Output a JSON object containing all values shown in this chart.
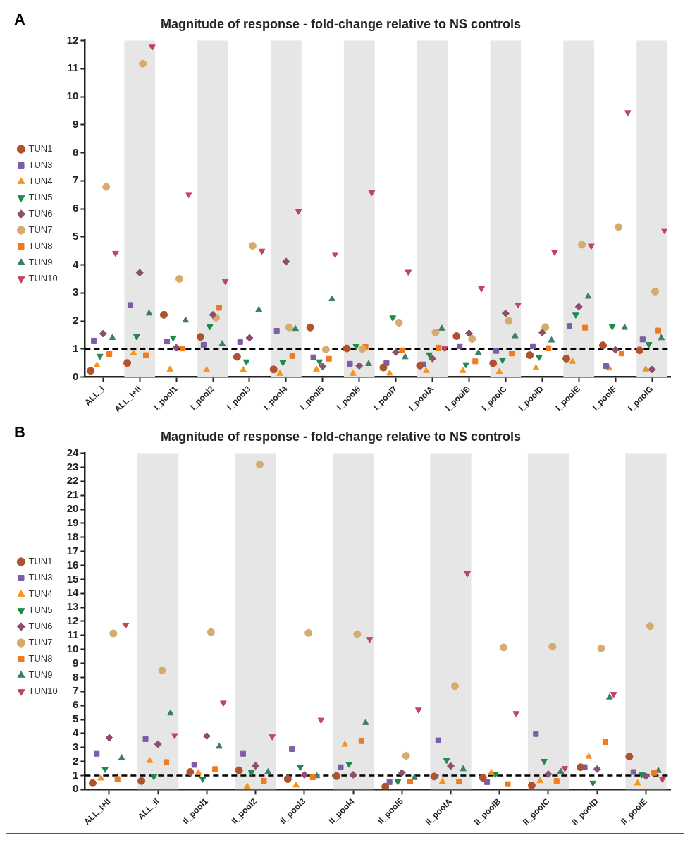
{
  "chart_data": [
    {
      "type": "scatter",
      "title": "Magnitude of response - fold-change relative to NS controls",
      "annotations": [
        "A"
      ],
      "legend": "left",
      "grid": false,
      "categories": [
        "ALL_I",
        "ALL_I+II",
        "I_pool1",
        "I_pool2",
        "I_pool3",
        "I_pool4",
        "I_pool5",
        "I_pool6",
        "I_pool7",
        "I_poolA",
        "I_poolB",
        "I_poolC",
        "I_poolD",
        "I_poolE",
        "I_poolF",
        "I_poolG"
      ],
      "ylim": [
        0,
        12
      ],
      "yticks": [
        0,
        1,
        2,
        3,
        4,
        5,
        6,
        7,
        8,
        9,
        10,
        11,
        12
      ],
      "ref_lines": [
        {
          "axis": "y",
          "value": 1,
          "line_style": "dashed",
          "color": "#000000"
        }
      ],
      "bands": [
        {
          "axis": "x",
          "from": "ALL_I+II",
          "to": "ALL_I+II",
          "color": "#e6e6e6"
        },
        {
          "axis": "x",
          "from": "I_pool2",
          "to": "I_pool2",
          "color": "#e6e6e6"
        },
        {
          "axis": "x",
          "from": "I_pool4",
          "to": "I_pool4",
          "color": "#e6e6e6"
        },
        {
          "axis": "x",
          "from": "I_pool6",
          "to": "I_pool6",
          "color": "#e6e6e6"
        },
        {
          "axis": "x",
          "from": "I_poolA",
          "to": "I_poolA",
          "color": "#e6e6e6"
        },
        {
          "axis": "x",
          "from": "I_poolC",
          "to": "I_poolC",
          "color": "#e6e6e6"
        },
        {
          "axis": "x",
          "from": "I_poolE",
          "to": "I_poolE",
          "color": "#e6e6e6"
        },
        {
          "axis": "x",
          "from": "I_poolG",
          "to": "I_poolG",
          "color": "#e6e6e6"
        }
      ],
      "series": [
        {
          "name": "TUN1",
          "color": "#b0522e",
          "marker": "circle",
          "values": [
            0.22,
            0.5,
            2.22,
            1.43,
            0.72,
            0.27,
            1.77,
            1.02,
            0.34,
            0.41,
            1.46,
            0.49,
            0.78,
            0.66,
            1.13,
            0.95
          ]
        },
        {
          "name": "TUN3",
          "color": "#7d5ca8",
          "marker": "square",
          "values": [
            1.3,
            2.57,
            1.27,
            1.15,
            1.25,
            1.65,
            0.7,
            0.47,
            0.5,
            0.45,
            1.1,
            0.93,
            1.1,
            1.82,
            0.39,
            1.34
          ]
        },
        {
          "name": "TUN4",
          "color": "#f5941e",
          "marker": "triangle",
          "values": [
            0.42,
            0.85,
            0.27,
            0.25,
            0.25,
            0.12,
            0.27,
            0.12,
            0.13,
            0.22,
            0.22,
            0.19,
            0.32,
            0.55,
            0.31,
            0.27
          ]
        },
        {
          "name": "TUN5",
          "color": "#1f8a47",
          "marker": "triangle-down",
          "values": [
            0.75,
            1.45,
            1.4,
            1.8,
            0.55,
            0.52,
            0.55,
            1.1,
            2.12,
            0.8,
            0.45,
            0.61,
            0.71,
            2.22,
            1.8,
            1.17
          ]
        },
        {
          "name": "TUN6",
          "color": "#8c4f6e",
          "marker": "diamond",
          "values": [
            1.55,
            3.72,
            1.05,
            2.22,
            1.4,
            4.12,
            0.38,
            0.4,
            0.89,
            0.66,
            1.56,
            2.27,
            1.59,
            2.51,
            0.97,
            0.27
          ]
        },
        {
          "name": "TUN7",
          "color": "#d6ab6c",
          "marker": "circle",
          "values": [
            6.78,
            11.18,
            3.5,
            2.12,
            4.68,
            1.77,
            0.98,
            1.0,
            1.94,
            1.59,
            1.36,
            2.0,
            1.78,
            4.72,
            5.35,
            3.05
          ]
        },
        {
          "name": "TUN8",
          "color": "#f27a1a",
          "marker": "square",
          "values": [
            0.82,
            0.78,
            1.02,
            2.47,
            null,
            0.75,
            0.65,
            1.08,
            0.95,
            1.05,
            0.56,
            0.84,
            1.03,
            1.76,
            0.84,
            1.66
          ]
        },
        {
          "name": "TUN9",
          "color": "#3d7e6b",
          "marker": "triangle",
          "values": [
            1.4,
            2.27,
            2.02,
            1.18,
            2.4,
            1.72,
            2.78,
            0.47,
            0.71,
            1.73,
            0.86,
            1.46,
            1.31,
            2.87,
            1.76,
            1.39
          ]
        },
        {
          "name": "TUN10",
          "color": "#c2435c",
          "marker": "triangle-down",
          "values": [
            4.42,
            11.78,
            6.52,
            3.42,
            4.5,
            5.92,
            4.38,
            6.58,
            3.75,
            1.03,
            3.16,
            2.58,
            4.46,
            4.68,
            9.44,
            5.23
          ]
        }
      ]
    },
    {
      "type": "scatter",
      "title": "Magnitude of response - fold-change relative to NS controls",
      "annotations": [
        "B"
      ],
      "legend": "left",
      "grid": false,
      "categories": [
        "ALL_I+II",
        "ALL_II",
        "II_pool1",
        "II_pool2",
        "II_pool3",
        "II_pool4",
        "II_pool5",
        "II_poolA",
        "II_poolB",
        "II_poolC",
        "II_poolD",
        "II_poolE"
      ],
      "ylim": [
        0,
        24
      ],
      "yticks": [
        0,
        1,
        2,
        3,
        4,
        5,
        6,
        7,
        8,
        9,
        10,
        11,
        12,
        13,
        14,
        15,
        16,
        17,
        18,
        19,
        20,
        21,
        22,
        23,
        24
      ],
      "ref_lines": [
        {
          "axis": "y",
          "value": 1,
          "line_style": "dashed",
          "color": "#000000"
        }
      ],
      "bands": [
        {
          "axis": "x",
          "from": "ALL_II",
          "to": "ALL_II",
          "color": "#e6e6e6"
        },
        {
          "axis": "x",
          "from": "II_pool2",
          "to": "II_pool2",
          "color": "#e6e6e6"
        },
        {
          "axis": "x",
          "from": "II_pool4",
          "to": "II_pool4",
          "color": "#e6e6e6"
        },
        {
          "axis": "x",
          "from": "II_poolA",
          "to": "II_poolA",
          "color": "#e6e6e6"
        },
        {
          "axis": "x",
          "from": "II_poolC",
          "to": "II_poolC",
          "color": "#e6e6e6"
        },
        {
          "axis": "x",
          "from": "II_poolE",
          "to": "II_poolE",
          "color": "#e6e6e6"
        }
      ],
      "series": [
        {
          "name": "TUN1",
          "color": "#b0522e",
          "marker": "circle",
          "values": [
            0.46,
            0.61,
            1.25,
            1.37,
            0.75,
            0.96,
            0.21,
            0.93,
            0.84,
            0.29,
            1.59,
            2.35
          ]
        },
        {
          "name": "TUN3",
          "color": "#7d5ca8",
          "marker": "square",
          "values": [
            2.55,
            3.6,
            1.76,
            2.55,
            2.89,
            1.59,
            0.53,
            3.51,
            0.53,
            3.96,
            1.6,
            1.25
          ]
        },
        {
          "name": "TUN4",
          "color": "#f5941e",
          "marker": "triangle",
          "values": [
            0.8,
            2.05,
            1.19,
            0.21,
            0.3,
            3.21,
            null,
            0.57,
            1.19,
            0.61,
            2.35,
            0.45
          ]
        },
        {
          "name": "TUN5",
          "color": "#1f8a47",
          "marker": "triangle-down",
          "values": [
            1.46,
            0.93,
            0.75,
            1.23,
            1.6,
            1.82,
            0.57,
            2.09,
            1.1,
            2.03,
            0.48,
            1.07
          ]
        },
        {
          "name": "TUN6",
          "color": "#8c4f6e",
          "marker": "diamond",
          "values": [
            3.69,
            3.24,
            3.81,
            1.69,
            1.05,
            1.05,
            1.19,
            1.68,
            null,
            1.1,
            1.46,
            0.96
          ]
        },
        {
          "name": "TUN7",
          "color": "#d6ab6c",
          "marker": "circle",
          "values": [
            11.14,
            8.5,
            11.23,
            23.2,
            11.18,
            11.09,
            2.41,
            7.38,
            10.14,
            10.2,
            10.07,
            11.66
          ]
        },
        {
          "name": "TUN8",
          "color": "#f27a1a",
          "marker": "square",
          "values": [
            0.75,
            1.96,
            1.46,
            0.62,
            0.87,
            3.46,
            0.57,
            0.57,
            0.39,
            0.61,
            3.39,
            1.19
          ]
        },
        {
          "name": "TUN9",
          "color": "#3d7e6b",
          "marker": "triangle",
          "values": [
            2.25,
            5.44,
            3.07,
            1.25,
            0.96,
            4.76,
            0.84,
            1.46,
            null,
            1.28,
            6.58,
            1.34
          ]
        },
        {
          "name": "TUN10",
          "color": "#c2435c",
          "marker": "triangle-down",
          "values": [
            11.75,
            3.87,
            6.19,
            3.78,
            4.97,
            10.73,
            5.69,
            15.42,
            5.44,
            1.52,
            6.81,
            0.75
          ]
        }
      ]
    }
  ]
}
